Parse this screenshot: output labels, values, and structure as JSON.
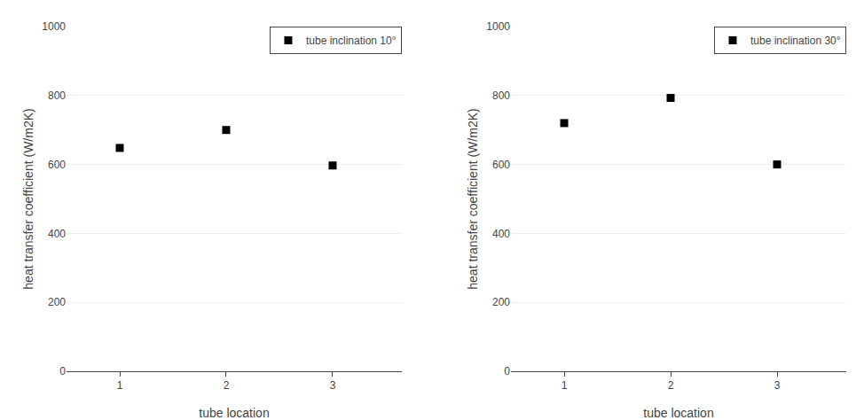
{
  "chart_data": [
    {
      "type": "scatter",
      "x": [
        1,
        2,
        3
      ],
      "series": [
        {
          "name": "tube inclination 10°",
          "color": "black",
          "marker": "square",
          "values": [
            648,
            700,
            597
          ]
        }
      ],
      "xlabel": "tube location",
      "ylabel": "heat transfer coefficient (W/m2K)",
      "xlim": [
        0.5,
        3.65
      ],
      "xticks": [
        1,
        2,
        3
      ],
      "ylim": [
        0,
        1000
      ],
      "yticks": [
        0,
        200,
        400,
        600,
        800,
        1000
      ],
      "grid": "y",
      "legend": "upper right"
    },
    {
      "type": "scatter",
      "x": [
        1,
        2,
        3
      ],
      "series": [
        {
          "name": "tube inclination 30°",
          "color": "black",
          "marker": "square",
          "values": [
            720,
            793,
            600
          ]
        }
      ],
      "xlabel": "tube location",
      "ylabel": "heat transfer coefficient (W/m2K)",
      "xlim": [
        0.5,
        3.65
      ],
      "xticks": [
        1,
        2,
        3
      ],
      "ylim": [
        0,
        1000
      ],
      "yticks": [
        0,
        200,
        400,
        600,
        800,
        1000
      ],
      "grid": "y",
      "legend": "upper right"
    }
  ]
}
